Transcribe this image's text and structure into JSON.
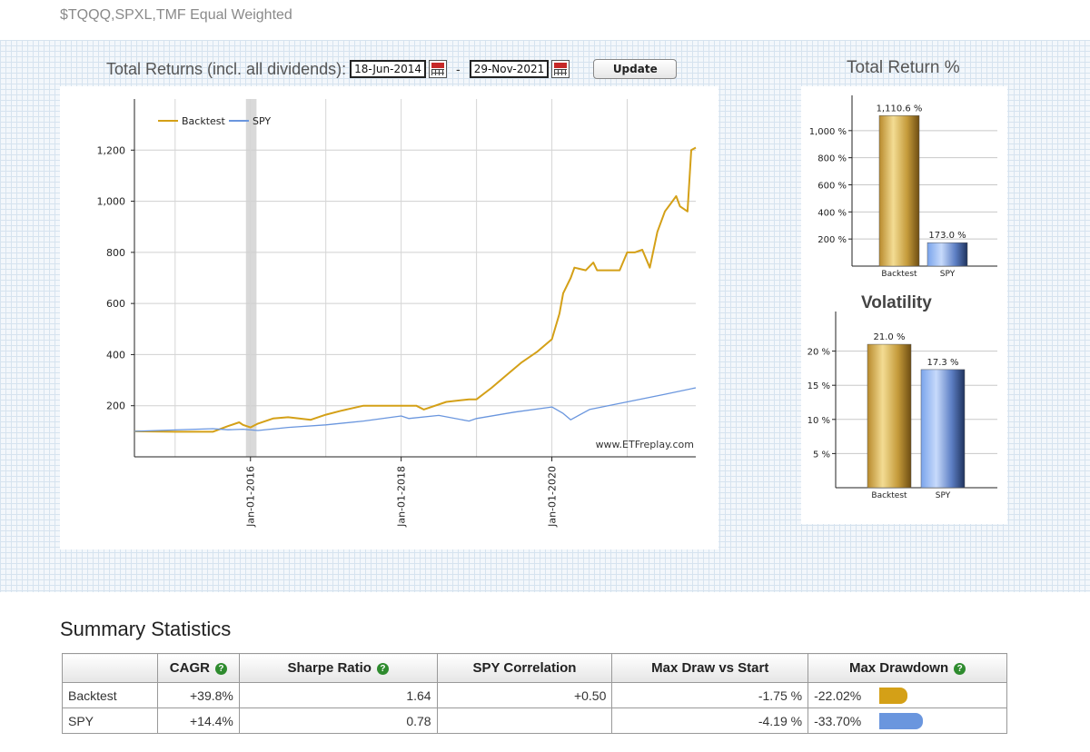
{
  "page": {
    "title": "$TQQQ,SPXL,TMF Equal Weighted"
  },
  "controls": {
    "label": "Total Returns (incl. all dividends):",
    "start_date": "18-Jun-2014",
    "separator": "-",
    "end_date": "29-Nov-2021",
    "update_label": "Update"
  },
  "colors": {
    "backtest": "#d4a017",
    "spy": "#6a96de"
  },
  "chart_data": [
    {
      "type": "line",
      "title": "",
      "legend": [
        "Backtest",
        "SPY"
      ],
      "legend_position": "top-left",
      "watermark": "www.ETFreplay.com",
      "y_ticks": [
        200,
        400,
        600,
        800,
        1000,
        1200
      ],
      "y_tick_labels": [
        "200",
        "400",
        "600",
        "800",
        "1,000",
        "1,200"
      ],
      "ylim": [
        0,
        1400
      ],
      "x_ticks": [
        "Jan-01-2016",
        "Jan-01-2018",
        "Jan-01-2020"
      ],
      "xlim": [
        2014.46,
        2021.91
      ],
      "grid": true,
      "series": [
        {
          "name": "Backtest",
          "x": [
            2014.46,
            2015.0,
            2015.5,
            2015.7,
            2015.85,
            2015.9,
            2016.0,
            2016.1,
            2016.3,
            2016.5,
            2016.8,
            2017.0,
            2017.2,
            2017.5,
            2017.6,
            2017.9,
            2018.0,
            2018.2,
            2018.3,
            2018.6,
            2018.9,
            2019.0,
            2019.2,
            2019.4,
            2019.6,
            2019.8,
            2020.0,
            2020.1,
            2020.15,
            2020.25,
            2020.3,
            2020.45,
            2020.55,
            2020.6,
            2020.9,
            2021.0,
            2021.1,
            2021.2,
            2021.3,
            2021.4,
            2021.5,
            2021.6,
            2021.65,
            2021.7,
            2021.8,
            2021.85,
            2021.91
          ],
          "y": [
            100,
            98,
            98,
            120,
            135,
            125,
            115,
            130,
            150,
            155,
            145,
            165,
            180,
            200,
            200,
            200,
            200,
            200,
            185,
            215,
            225,
            225,
            270,
            320,
            370,
            410,
            460,
            560,
            640,
            700,
            740,
            730,
            760,
            730,
            730,
            800,
            800,
            810,
            740,
            880,
            960,
            1000,
            1020,
            980,
            960,
            1200,
            1210
          ]
        },
        {
          "name": "SPY",
          "x": [
            2014.46,
            2015.0,
            2015.5,
            2015.7,
            2015.9,
            2016.1,
            2016.5,
            2017.0,
            2017.5,
            2018.0,
            2018.1,
            2018.5,
            2018.9,
            2019.0,
            2019.5,
            2020.0,
            2020.15,
            2020.25,
            2020.5,
            2021.0,
            2021.5,
            2021.91
          ],
          "y": [
            100,
            105,
            110,
            106,
            108,
            103,
            115,
            125,
            140,
            160,
            150,
            162,
            140,
            150,
            175,
            195,
            170,
            145,
            185,
            215,
            245,
            270
          ]
        }
      ]
    },
    {
      "type": "bar",
      "title": "Total Return %",
      "categories": [
        "Backtest",
        "SPY"
      ],
      "values": [
        1110.6,
        173.0
      ],
      "value_labels": [
        "1,110.6 %",
        "173.0 %"
      ],
      "y_ticks": [
        200,
        400,
        600,
        800,
        1000
      ],
      "y_tick_labels": [
        "200 %",
        "400 %",
        "600 %",
        "800 %",
        "1,000 %"
      ],
      "ylim": [
        0,
        1220
      ]
    },
    {
      "type": "bar",
      "title": "Volatility",
      "categories": [
        "Backtest",
        "SPY"
      ],
      "values": [
        21.0,
        17.3
      ],
      "value_labels": [
        "21.0 %",
        "17.3 %"
      ],
      "y_ticks": [
        5,
        10,
        15,
        20
      ],
      "y_tick_labels": [
        "5 %",
        "10 %",
        "15 %",
        "20 %"
      ],
      "ylim": [
        0,
        25
      ]
    }
  ],
  "summary": {
    "title": "Summary Statistics",
    "help_symbol": "?",
    "columns": [
      "",
      "CAGR",
      "Sharpe Ratio",
      "SPY Correlation",
      "Max Draw vs Start",
      "Max Drawdown"
    ],
    "rows": [
      {
        "name": "Backtest",
        "cagr": "+39.8%",
        "sharpe": "1.64",
        "corr": "+0.50",
        "max_draw_start": "-1.75 %",
        "max_drawdown": "-22.02%",
        "drawdown_fraction": 0.2202
      },
      {
        "name": "SPY",
        "cagr": "+14.4%",
        "sharpe": "0.78",
        "corr": "",
        "max_draw_start": "-4.19 %",
        "max_drawdown": "-33.70%",
        "drawdown_fraction": 0.337
      }
    ]
  }
}
